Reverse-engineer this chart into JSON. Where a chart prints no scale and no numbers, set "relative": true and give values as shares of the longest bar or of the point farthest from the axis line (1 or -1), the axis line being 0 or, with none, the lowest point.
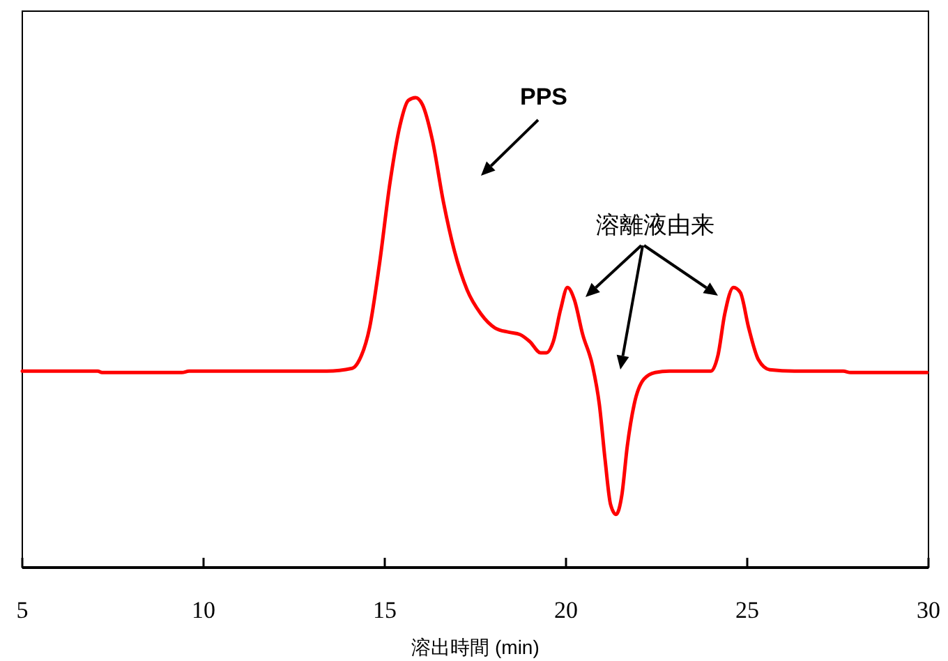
{
  "chart_data": {
    "type": "line",
    "relative": true,
    "xlabel": "溶出時間 (min)",
    "xlim": [
      5,
      30
    ],
    "xticks": [
      5,
      10,
      15,
      20,
      25,
      30
    ],
    "grid": false,
    "marker": "none",
    "line_style": "solid",
    "annotations": [
      "PPS",
      "溶離液由来"
    ],
    "series": [
      {
        "color": "#ff0000",
        "x": [
          5,
          7.08,
          7.2,
          9.4,
          9.6,
          11.9,
          13.4,
          14.1,
          14.3,
          14.58,
          14.85,
          15.15,
          15.42,
          15.65,
          15.85,
          16.04,
          16.31,
          16.62,
          16.92,
          17.27,
          17.65,
          18.04,
          18.42,
          18.73,
          19.0,
          19.3,
          19.46,
          19.65,
          19.85,
          20.04,
          20.23,
          20.46,
          20.73,
          20.92,
          21.08,
          21.23,
          21.38,
          21.54,
          21.69,
          21.88,
          22.15,
          22.46,
          22.85,
          24.0,
          24.19,
          24.38,
          24.62,
          24.81,
          25.04,
          25.31,
          25.62,
          26.3,
          27.65,
          27.85,
          29.96
        ],
        "values": [
          0.418,
          0.418,
          0.415,
          0.415,
          0.418,
          0.418,
          0.418,
          0.424,
          0.442,
          0.51,
          0.644,
          0.822,
          0.941,
          0.994,
          1.0,
          0.985,
          0.911,
          0.777,
          0.674,
          0.591,
          0.54,
          0.51,
          0.501,
          0.496,
          0.481,
          0.457,
          0.457,
          0.481,
          0.549,
          0.596,
          0.57,
          0.496,
          0.43,
          0.347,
          0.228,
          0.134,
          0.113,
          0.154,
          0.258,
          0.347,
          0.401,
          0.415,
          0.418,
          0.418,
          0.451,
          0.54,
          0.596,
          0.585,
          0.51,
          0.442,
          0.421,
          0.418,
          0.418,
          0.415,
          0.415
        ]
      }
    ]
  }
}
